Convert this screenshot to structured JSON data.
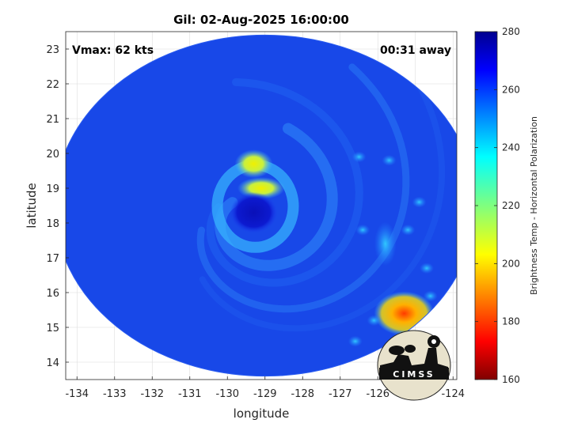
{
  "chart_data": {
    "type": "heatmap",
    "title": "Gil: 02-Aug-2025 16:00:00",
    "xlabel": "longitude",
    "ylabel": "latitude",
    "xlim": [
      -134.3,
      -123.9
    ],
    "ylim": [
      13.5,
      23.5
    ],
    "xticks": [
      "-134",
      "-133",
      "-132",
      "-131",
      "-130",
      "-129",
      "-128",
      "-127",
      "-126",
      "-125",
      "-124"
    ],
    "yticks": [
      "14",
      "15",
      "16",
      "17",
      "18",
      "19",
      "20",
      "21",
      "22",
      "23"
    ],
    "grid": true,
    "annotations": {
      "vmax": "Vmax: 62 kts",
      "away": "00:31 away"
    },
    "colorbar": {
      "label": "Brightness Temp - Horizontal Polarization",
      "min": 160,
      "max": 280,
      "ticks": [
        "160",
        "180",
        "200",
        "220",
        "240",
        "260",
        "280"
      ],
      "colormap": "jet"
    },
    "swath": {
      "center_lon": -129.0,
      "center_lat": 18.5,
      "radius_lon": 5.6,
      "radius_lat": 4.9
    },
    "features": [
      {
        "name": "eye",
        "lon": -129.3,
        "lat": 18.3,
        "brightness_temp": 268
      },
      {
        "name": "eyewall-north",
        "lon": -129.1,
        "lat": 19.0,
        "brightness_temp": 205
      },
      {
        "name": "eyewall-northwest",
        "lon": -129.3,
        "lat": 19.7,
        "brightness_temp": 212
      },
      {
        "name": "rainband-southeast",
        "lon": -125.3,
        "lat": 15.4,
        "brightness_temp": 185
      },
      {
        "name": "rainband-east",
        "lon": -125.8,
        "lat": 17.4,
        "brightness_temp": 230
      },
      {
        "name": "background",
        "brightness_temp": 262
      }
    ]
  },
  "logo": {
    "text": "CIMSS"
  }
}
